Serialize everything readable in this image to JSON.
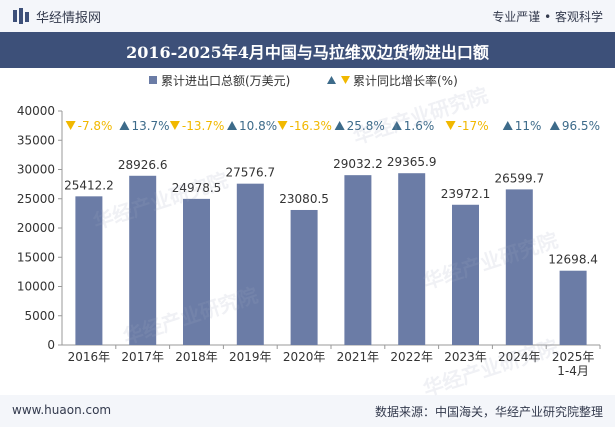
{
  "header": {
    "brand": "华经情报网",
    "slogan_left": "专业严谨",
    "slogan_right": "客观科学",
    "title": "2016-2025年4月中国与马拉维双边货物进出口额"
  },
  "footer": {
    "site": "www.huaon.com",
    "source": "数据来源：中国海关，华经产业研究院整理"
  },
  "watermark": "华经产业研究院",
  "colors": {
    "bar": "#6b7ca6",
    "up": "#3d6b8a",
    "down": "#f1b800",
    "titlebar": "#3d5079",
    "text": "#333333"
  },
  "chart_data": {
    "type": "bar",
    "categories": [
      "2016年",
      "2017年",
      "2018年",
      "2019年",
      "2020年",
      "2021年",
      "2022年",
      "2023年",
      "2024年",
      "2025年\n1-4月"
    ],
    "series": [
      {
        "name": "累计进出口总额(万美元)",
        "values": [
          25412.2,
          28926.6,
          24978.5,
          27576.7,
          23080.5,
          29032.2,
          29365.9,
          23972.1,
          26599.7,
          12698.4
        ],
        "labels": [
          "25412.2",
          "28926.6",
          "24978.5",
          "27576.7",
          "23080.5",
          "29032.2",
          "29365.9",
          "23972.1",
          "26599.7",
          "12698.4"
        ]
      },
      {
        "name": "累计同比增长率(%)",
        "values": [
          -7.8,
          13.7,
          -13.7,
          10.8,
          -16.3,
          25.8,
          1.6,
          -17,
          11,
          96.5
        ],
        "labels": [
          "-7.8%",
          "13.7%",
          "-13.7%",
          "10.8%",
          "-16.3%",
          "25.8%",
          "1.6%",
          "-17%",
          "11%",
          "96.5%"
        ]
      }
    ],
    "yticks": [
      "0",
      "5000",
      "10000",
      "15000",
      "20000",
      "25000",
      "30000",
      "35000",
      "40000"
    ],
    "ylim": [
      0,
      40000
    ],
    "legend_placement": "top-center",
    "grid": false
  }
}
